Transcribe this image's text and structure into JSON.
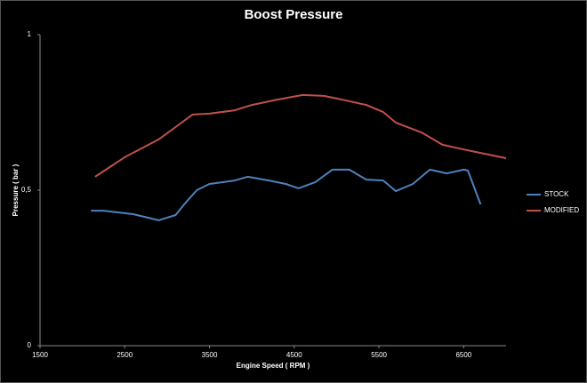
{
  "chart_data": {
    "type": "line",
    "title": "Boost Pressure",
    "x_label": "Engine Speed ( RPM )",
    "y_label": "Pressure ( bar )",
    "xlim": [
      1500,
      7000
    ],
    "xticks": [
      1500,
      2500,
      3500,
      4500,
      5500,
      6500
    ],
    "ylim": [
      0,
      1
    ],
    "yticks": [
      0,
      {
        "value": 0.5,
        "label": "0,5"
      },
      1
    ],
    "legend": "right",
    "series": [
      {
        "name": "STOCK",
        "color": "#4f81bd",
        "x": [
          2100,
          2250,
          2600,
          2900,
          3100,
          3200,
          3350,
          3500,
          3800,
          3950,
          4200,
          4400,
          4550,
          4750,
          4950,
          5150,
          5350,
          5550,
          5700,
          5900,
          6100,
          6300,
          6500,
          6550,
          6700
        ],
        "values": [
          0.434,
          0.434,
          0.423,
          0.403,
          0.42,
          0.454,
          0.5,
          0.52,
          0.531,
          0.543,
          0.531,
          0.52,
          0.506,
          0.526,
          0.566,
          0.566,
          0.534,
          0.531,
          0.497,
          0.52,
          0.566,
          0.554,
          0.566,
          0.563,
          0.454
        ]
      },
      {
        "name": "MODIFIED",
        "color": "#c0504d",
        "x": [
          2150,
          2500,
          2900,
          3100,
          3300,
          3500,
          3800,
          4000,
          4300,
          4600,
          4850,
          5100,
          5350,
          5550,
          5700,
          6000,
          6250,
          6500,
          6750,
          7000
        ],
        "values": [
          0.543,
          0.606,
          0.663,
          0.703,
          0.743,
          0.746,
          0.757,
          0.774,
          0.791,
          0.806,
          0.803,
          0.789,
          0.774,
          0.751,
          0.717,
          0.686,
          0.646,
          0.631,
          0.617,
          0.603
        ]
      }
    ]
  }
}
